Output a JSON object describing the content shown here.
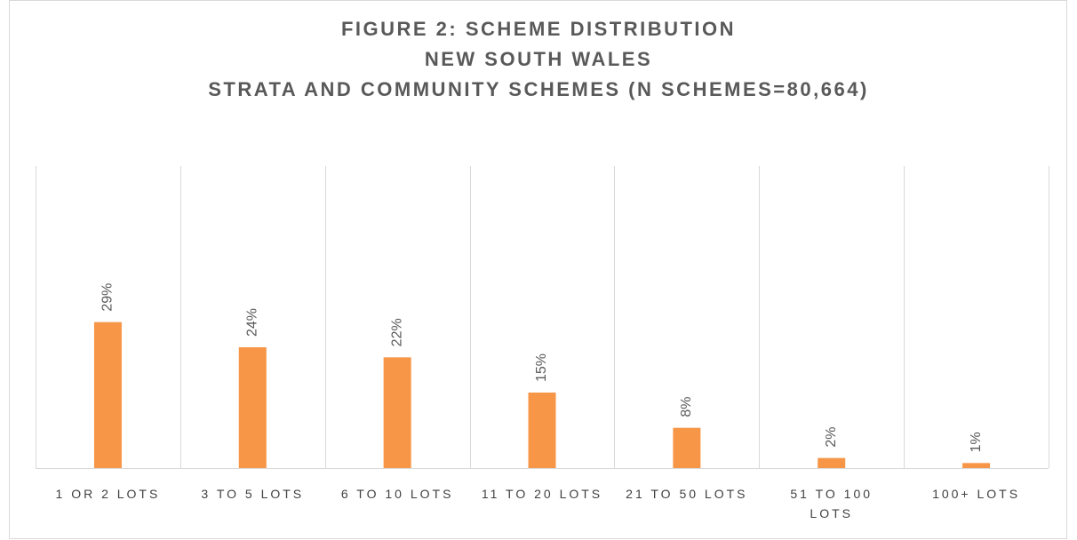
{
  "chart_data": {
    "type": "bar",
    "title": [
      "FIGURE 2: SCHEME DISTRIBUTION",
      "NEW SOUTH WALES",
      "STRATA AND COMMUNITY SCHEMES (N SCHEMES=80,664)"
    ],
    "categories": [
      "1 OR 2 LOTS",
      "3 TO 5 LOTS",
      "6 TO 10 LOTS",
      "11 TO 20 LOTS",
      "21 TO 50 LOTS",
      "51 TO 100 LOTS",
      "100+ LOTS"
    ],
    "values": [
      29,
      24,
      22,
      15,
      8,
      2,
      1
    ],
    "value_labels": [
      "29%",
      "24%",
      "22%",
      "15%",
      "8%",
      "2%",
      "1%"
    ],
    "color": "#f79646",
    "ylim": [
      0,
      60
    ],
    "grid": "x"
  }
}
